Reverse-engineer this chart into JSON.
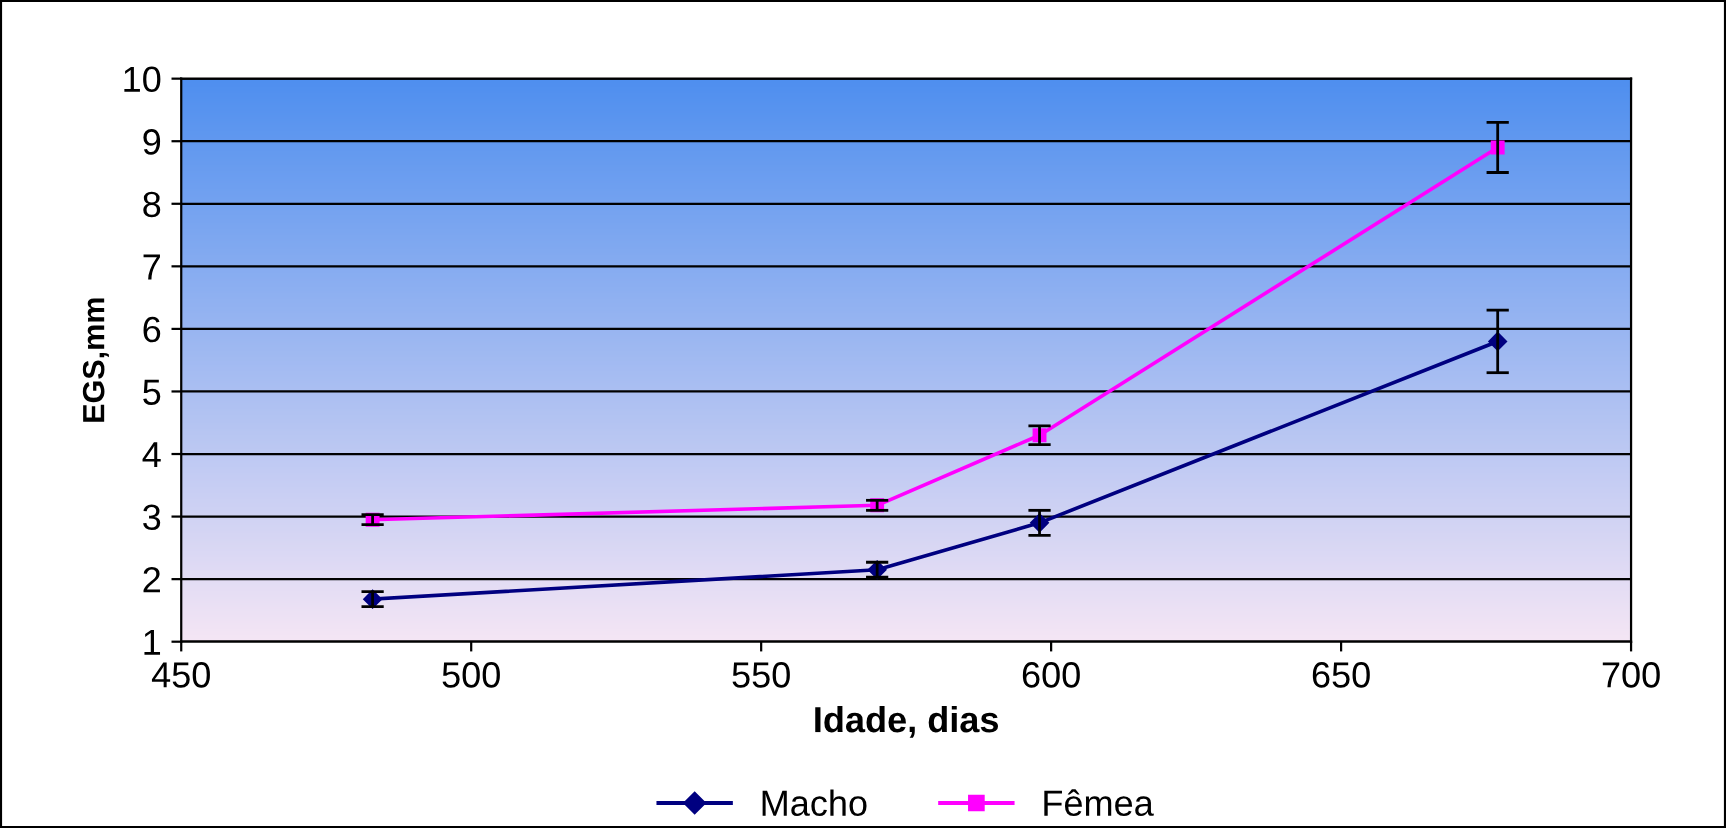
{
  "chart_data": {
    "type": "line",
    "xlabel": "Idade, dias",
    "ylabel": "EGS,mm",
    "xlim": [
      450,
      700
    ],
    "xticks": [
      450,
      500,
      550,
      600,
      650,
      700
    ],
    "ylim": [
      1,
      10
    ],
    "yticks": [
      1,
      2,
      3,
      4,
      5,
      6,
      7,
      8,
      9,
      10
    ],
    "grid": "y",
    "legend": "bottom",
    "line_style": "solid",
    "series": [
      {
        "name": "Macho",
        "color": "#000080",
        "marker": "diamond",
        "x": [
          483,
          570,
          598,
          677
        ],
        "values": [
          1.68,
          2.15,
          2.9,
          5.8
        ],
        "errors": [
          0.12,
          0.12,
          0.2,
          0.5
        ]
      },
      {
        "name": "Fêmea",
        "color": "#ff00ff",
        "marker": "square",
        "x": [
          483,
          570,
          598,
          677
        ],
        "values": [
          2.95,
          3.18,
          4.3,
          8.9
        ],
        "errors": [
          0.08,
          0.08,
          0.15,
          0.4
        ]
      }
    ]
  }
}
